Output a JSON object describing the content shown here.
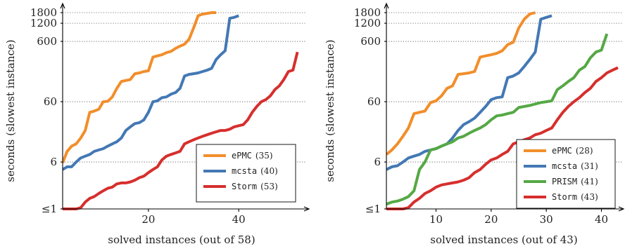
{
  "chart_data": [
    {
      "type": "line",
      "ylabel": "seconds (slowest instance)",
      "xlabel": "solved instances (out of 58)",
      "x_ticks": [
        "20",
        "40"
      ],
      "y_ticks": [
        "≤1",
        "6",
        "60",
        "600",
        "1200",
        "1800"
      ],
      "ylim": [
        1,
        1800
      ],
      "yscale": "log",
      "xlim": [
        1,
        54
      ],
      "grid": "horizontal dotted",
      "legend_position": "bottom-right",
      "series": [
        {
          "name": "ePMC",
          "count": "(35)",
          "color": "#F28E2B",
          "x": [
            1,
            2,
            3,
            4,
            5,
            6,
            7,
            8,
            9,
            10,
            11,
            12,
            13,
            14,
            15,
            16,
            17,
            18,
            19,
            20,
            21,
            22,
            23,
            24,
            25,
            26,
            27,
            28,
            29,
            30,
            31,
            32,
            33,
            34,
            35
          ],
          "y": [
            5.8,
            9,
            11,
            12,
            15,
            20,
            40,
            42,
            45,
            60,
            61,
            72,
            100,
            130,
            135,
            140,
            175,
            180,
            190,
            195,
            330,
            345,
            360,
            390,
            410,
            460,
            500,
            540,
            650,
            1000,
            1600,
            1700,
            1750,
            1800,
            1800
          ]
        },
        {
          "name": "mcsta",
          "count": "(40)",
          "color": "#4378B4",
          "x": [
            1,
            2,
            3,
            4,
            5,
            6,
            7,
            8,
            9,
            10,
            11,
            12,
            13,
            14,
            15,
            16,
            17,
            18,
            19,
            20,
            21,
            22,
            23,
            24,
            25,
            26,
            27,
            28,
            29,
            30,
            31,
            32,
            33,
            34,
            35,
            36,
            37,
            38,
            39,
            40
          ],
          "y": [
            4.5,
            5,
            5,
            6,
            7,
            7.5,
            8,
            9,
            9.5,
            10,
            11,
            12,
            13,
            15,
            20,
            23,
            26,
            27,
            30,
            40,
            60,
            62,
            70,
            72,
            80,
            85,
            100,
            160,
            170,
            175,
            180,
            190,
            200,
            215,
            300,
            360,
            420,
            1450,
            1500,
            1600
          ]
        },
        {
          "name": "Storm",
          "count": "(53)",
          "color": "#D62F2D",
          "x": [
            1,
            2,
            3,
            4,
            5,
            6,
            7,
            8,
            9,
            10,
            11,
            12,
            13,
            14,
            15,
            16,
            17,
            18,
            19,
            20,
            21,
            22,
            23,
            24,
            25,
            26,
            27,
            28,
            29,
            30,
            31,
            32,
            33,
            34,
            35,
            36,
            37,
            38,
            39,
            40,
            41,
            42,
            43,
            44,
            45,
            46,
            47,
            48,
            49,
            50,
            51,
            52,
            53
          ],
          "y": [
            1,
            1,
            1,
            1,
            1.05,
            1.3,
            1.5,
            1.6,
            1.8,
            2,
            2.2,
            2.3,
            2.6,
            2.7,
            2.7,
            2.8,
            3.0,
            3.3,
            3.5,
            4.0,
            4.5,
            5,
            6.5,
            7.5,
            8,
            8.5,
            9,
            12,
            13,
            14,
            15,
            16,
            17,
            18,
            19,
            20,
            20,
            21,
            23,
            24,
            25,
            30,
            40,
            50,
            60,
            65,
            75,
            95,
            110,
            140,
            190,
            200,
            400
          ]
        }
      ]
    },
    {
      "type": "line",
      "ylabel": "seconds (slowest instance)",
      "xlabel": "solved instances (out of 43)",
      "x_ticks": [
        "10",
        "20",
        "30",
        "40"
      ],
      "y_ticks": [
        "≤1",
        "6",
        "60",
        "600",
        "1200",
        "1800"
      ],
      "ylim": [
        1,
        1800
      ],
      "yscale": "log",
      "xlim": [
        1,
        43
      ],
      "grid": "horizontal dotted",
      "legend_position": "bottom-right",
      "series": [
        {
          "name": "ePMC",
          "count": "(28)",
          "color": "#F28E2B",
          "x": [
            1,
            2,
            3,
            4,
            5,
            6,
            7,
            8,
            9,
            10,
            11,
            12,
            13,
            14,
            15,
            16,
            17,
            18,
            19,
            20,
            21,
            22,
            23,
            24,
            25,
            26,
            27,
            28
          ],
          "y": [
            8,
            9.5,
            12,
            16,
            22,
            38,
            40,
            42,
            58,
            62,
            75,
            100,
            110,
            170,
            175,
            180,
            190,
            330,
            345,
            360,
            380,
            420,
            530,
            580,
            1000,
            1400,
            1700,
            1800
          ]
        },
        {
          "name": "mcsta",
          "count": "(31)",
          "color": "#4378B4",
          "x": [
            1,
            2,
            3,
            4,
            5,
            6,
            7,
            8,
            9,
            10,
            11,
            12,
            13,
            14,
            15,
            16,
            17,
            18,
            19,
            20,
            21,
            22,
            23,
            24,
            25,
            26,
            27,
            28,
            29,
            30,
            31
          ],
          "y": [
            4.5,
            5,
            5.2,
            6,
            7,
            7.5,
            8,
            9,
            9.5,
            10,
            11,
            12,
            15,
            20,
            25,
            28,
            32,
            40,
            50,
            65,
            70,
            72,
            150,
            160,
            180,
            230,
            300,
            400,
            1400,
            1500,
            1600
          ]
        },
        {
          "name": "PRISM",
          "count": "(41)",
          "color": "#55A845",
          "x": [
            1,
            2,
            3,
            4,
            5,
            6,
            7,
            8,
            9,
            10,
            11,
            12,
            13,
            14,
            15,
            16,
            17,
            18,
            19,
            20,
            21,
            22,
            23,
            24,
            25,
            26,
            27,
            28,
            29,
            30,
            31,
            32,
            33,
            34,
            35,
            36,
            37,
            38,
            39,
            40,
            41
          ],
          "y": [
            1.2,
            1.3,
            1.35,
            1.45,
            1.6,
            2.0,
            4.5,
            6,
            9.5,
            10,
            11,
            12,
            13,
            15,
            16,
            18,
            20,
            22,
            25,
            30,
            35,
            36,
            38,
            40,
            48,
            50,
            52,
            55,
            58,
            60,
            62,
            95,
            110,
            130,
            150,
            200,
            230,
            320,
            400,
            430,
            800
          ]
        },
        {
          "name": "Storm",
          "count": "(43)",
          "color": "#D62F2D",
          "x": [
            1,
            2,
            3,
            4,
            5,
            6,
            7,
            8,
            9,
            10,
            11,
            12,
            13,
            14,
            15,
            16,
            17,
            18,
            19,
            20,
            21,
            22,
            23,
            24,
            25,
            26,
            27,
            28,
            29,
            30,
            31,
            32,
            33,
            34,
            35,
            36,
            37,
            38,
            39,
            40,
            41,
            42,
            43
          ],
          "y": [
            1,
            1,
            1,
            1,
            1.05,
            1.3,
            1.5,
            1.8,
            2,
            2.3,
            2.5,
            2.6,
            2.7,
            2.8,
            3.0,
            3.3,
            4.0,
            4.5,
            5.5,
            6.5,
            7,
            8,
            9,
            12,
            13,
            14,
            15,
            17,
            18,
            20,
            22,
            30,
            40,
            50,
            60,
            70,
            85,
            100,
            130,
            150,
            180,
            200,
            220
          ]
        }
      ]
    }
  ]
}
